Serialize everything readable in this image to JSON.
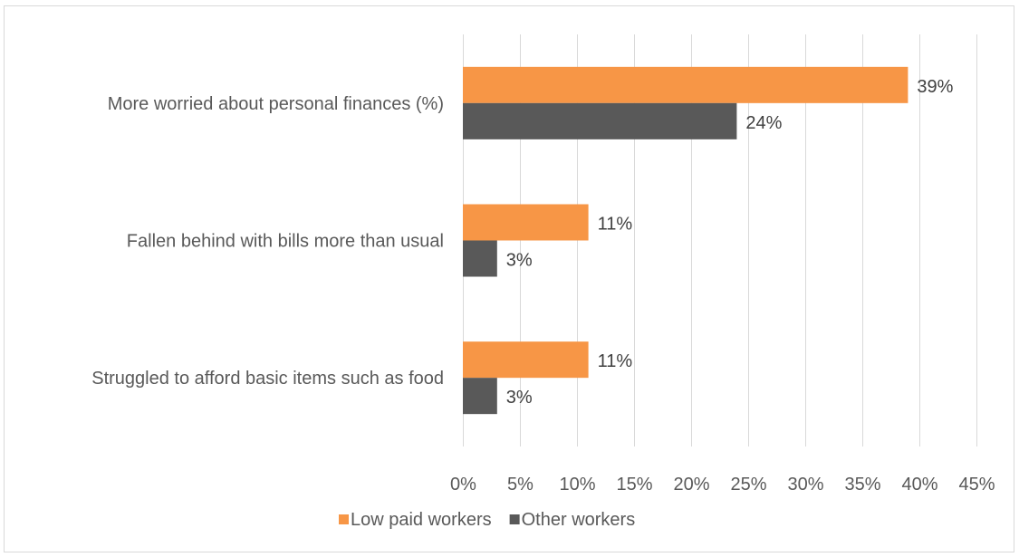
{
  "chart_data": {
    "type": "bar",
    "orientation": "horizontal",
    "categories": [
      "More worried about personal finances (%)",
      "Fallen behind with bills more than usual",
      "Struggled to afford basic items such as food"
    ],
    "series": [
      {
        "name": "Low paid workers",
        "values": [
          39,
          11,
          11
        ],
        "labels": [
          "39%",
          "11%",
          "11%"
        ],
        "color": "#f79646"
      },
      {
        "name": "Other workers",
        "values": [
          24,
          3,
          3
        ],
        "labels": [
          "24%",
          "3%",
          "3%"
        ],
        "color": "#595959"
      }
    ],
    "xlim": [
      0,
      45
    ],
    "xticks": [
      0,
      5,
      10,
      15,
      20,
      25,
      30,
      35,
      40,
      45
    ],
    "xtick_labels": [
      "0%",
      "5%",
      "10%",
      "15%",
      "20%",
      "25%",
      "30%",
      "35%",
      "40%",
      "45%"
    ],
    "grid": true,
    "gridline_color": "#d9d9d9",
    "legend_position": "bottom",
    "title": "",
    "xlabel": "",
    "ylabel": ""
  }
}
